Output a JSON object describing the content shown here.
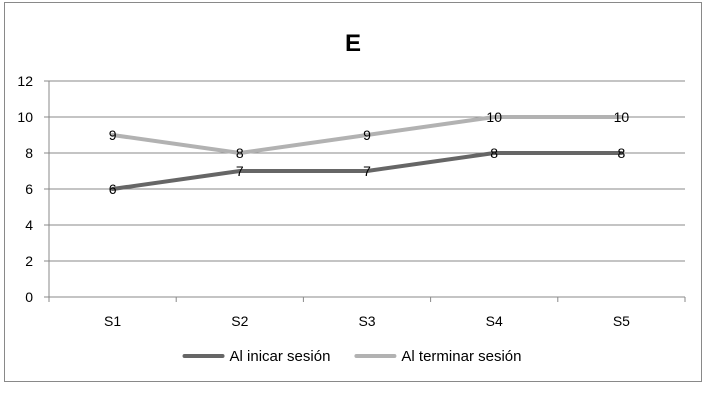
{
  "chart_data": {
    "type": "line",
    "title": "E",
    "xlabel": "",
    "ylabel": "",
    "categories": [
      "S1",
      "S2",
      "S3",
      "S4",
      "S5"
    ],
    "ylim": [
      0,
      12
    ],
    "yticks": [
      0,
      2,
      4,
      6,
      8,
      10,
      12
    ],
    "grid": true,
    "legend_position": "bottom",
    "data_labels": true,
    "series": [
      {
        "name": "Al inicar sesión",
        "values": [
          6,
          7,
          7,
          8,
          8
        ],
        "color": "#666666"
      },
      {
        "name": "Al terminar sesión",
        "values": [
          9,
          8,
          9,
          10,
          10
        ],
        "color": "#b2b2b2"
      }
    ]
  }
}
